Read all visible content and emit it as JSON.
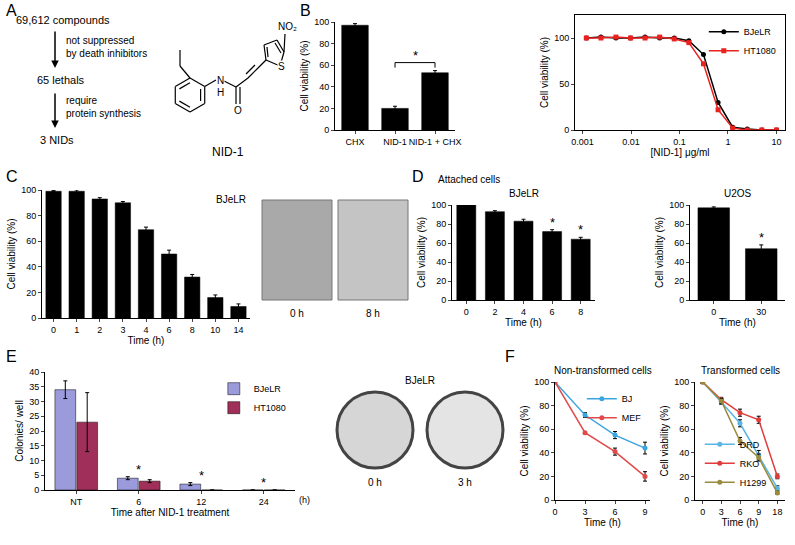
{
  "panel_labels": [
    "A",
    "B",
    "C",
    "D",
    "E",
    "F"
  ],
  "diagram": {
    "steps": [
      "69,612 compounds",
      "65 lethals",
      "3 NIDs"
    ],
    "filters": [
      [
        "not suppressed",
        "by death inhibitors"
      ],
      [
        "require",
        "protein synthesis"
      ]
    ],
    "structure": {
      "name": "NID-1",
      "atoms": [
        "N",
        "H",
        "O",
        "S",
        "NO₂"
      ]
    }
  },
  "images": [
    {
      "labels": [
        "0 h",
        "8 h"
      ]
    },
    {
      "title": "BJeLR",
      "labels": [
        "0 h",
        "3 h"
      ]
    }
  ],
  "chart_data": [
    {
      "type": "bar",
      "categories": [
        "CHX",
        "NID-1",
        "NID-1 + CHX"
      ],
      "values": [
        97,
        20,
        53
      ],
      "errors": [
        1.5,
        2,
        2
      ],
      "color": "#000000",
      "ylabel": "Cell viability (%)",
      "ylim": [
        0,
        100
      ],
      "yticks": [
        0,
        20,
        40,
        60,
        80,
        100
      ],
      "annotations": [
        {
          "text": "*",
          "categories": [
            "NID-1",
            "NID-1 + CHX"
          ]
        }
      ]
    },
    {
      "type": "line",
      "log": "x",
      "x": [
        0.0012,
        0.0024,
        0.0049,
        0.0098,
        0.0195,
        0.039,
        0.078,
        0.156,
        0.3125,
        0.625,
        1.25,
        2.5,
        5,
        10
      ],
      "series": [
        {
          "name": "BJeLR",
          "color": "#000000",
          "marker": "circle",
          "values": [
            100,
            101,
            100,
            100,
            101,
            100,
            100,
            97,
            82,
            30,
            3,
            1,
            0,
            0
          ]
        },
        {
          "name": "HT1080",
          "color": "#e8221f",
          "marker": "square",
          "values": [
            100,
            100,
            101,
            100,
            100,
            101,
            99,
            95,
            72,
            22,
            2,
            0,
            0,
            0
          ]
        }
      ],
      "xlabel": "[NID-1] μg/ml",
      "ylabel": "Cell viability (%)",
      "xlim": [
        0.0007,
        15
      ],
      "xticks": [
        0.001,
        0.01,
        0.1,
        1,
        10
      ],
      "ylim": [
        0,
        125
      ],
      "yticks": [
        0,
        50,
        100
      ],
      "legend": "top right"
    },
    {
      "type": "bar",
      "categories": [
        "0",
        "1",
        "2",
        "3",
        "4",
        "6",
        "8",
        "10",
        "14"
      ],
      "values": [
        99,
        99,
        93,
        90,
        69,
        50,
        32,
        16,
        9
      ],
      "errors": [
        0.5,
        1,
        1,
        1,
        2,
        3,
        2,
        2,
        2
      ],
      "color": "#000000",
      "xlabel": "Time (h)",
      "ylabel": "Cell viability (%)",
      "ylim": [
        0,
        100
      ],
      "yticks": [
        0,
        20,
        40,
        60,
        80,
        100
      ],
      "annotations": [
        {
          "text": "BJeLR"
        }
      ]
    },
    {
      "type": "bar",
      "subtitle": "Attached cells",
      "title": "BJeLR",
      "categories": [
        "0",
        "2",
        "4",
        "6",
        "8"
      ],
      "values": [
        100,
        93,
        83,
        72,
        64
      ],
      "errors": [
        0.5,
        1,
        2,
        2,
        2
      ],
      "color": "#000000",
      "xlabel": "Time (h)",
      "ylabel": "Cell viability (%)",
      "ylim": [
        0,
        100
      ],
      "yticks": [
        0,
        20,
        40,
        60,
        80,
        100
      ],
      "annotations": [
        {
          "text": "*",
          "category": "6"
        },
        {
          "text": "*",
          "category": "8"
        }
      ]
    },
    {
      "type": "bar",
      "title": "U2OS",
      "categories": [
        "0",
        "30"
      ],
      "values": [
        97,
        54
      ],
      "errors": [
        1,
        4
      ],
      "color": "#000000",
      "xlabel": "Time (h)",
      "ylabel": "Cell viability (%)",
      "ylim": [
        0,
        100
      ],
      "yticks": [
        0,
        20,
        40,
        60,
        80,
        100
      ],
      "annotations": [
        {
          "text": "*",
          "category": "30"
        }
      ]
    },
    {
      "type": "bar",
      "categories": [
        "NT",
        "6",
        "12",
        "24"
      ],
      "series": [
        {
          "name": "BJeLR",
          "color": "#9b9bdc",
          "values": [
            34,
            4,
            2,
            0
          ],
          "errors": [
            3,
            0.5,
            0.5,
            0
          ]
        },
        {
          "name": "HT1080",
          "color": "#a0305a",
          "values": [
            23,
            3,
            0,
            0
          ],
          "errors": [
            10,
            0.5,
            0,
            0
          ]
        }
      ],
      "xlabel": "Time after NID-1 treatment",
      "ylabel": "Colonies/ well",
      "ylim": [
        0,
        40
      ],
      "yticks": [
        0,
        5,
        10,
        15,
        20,
        25,
        30,
        35,
        40
      ],
      "legend": "top right",
      "annotations": [
        {
          "text": "*",
          "category": "6"
        },
        {
          "text": "*",
          "category": "12"
        },
        {
          "text": "*",
          "category": "24"
        },
        {
          "text": "(h)",
          "axis": "x"
        }
      ]
    },
    {
      "type": "line",
      "title": "Non-transformed cells",
      "x": [
        0,
        3,
        6,
        9
      ],
      "series": [
        {
          "name": "BJ",
          "color": "#3aa6e0",
          "values": [
            100,
            72,
            55,
            44
          ],
          "errors": [
            1,
            2,
            3,
            5
          ]
        },
        {
          "name": "MEF",
          "color": "#e04a4a",
          "values": [
            100,
            57,
            41,
            20
          ],
          "errors": [
            1,
            1,
            3,
            4
          ]
        }
      ],
      "xlabel": "Time (h)",
      "ylabel": "Cell viability (%)",
      "xlim": [
        0,
        9.5
      ],
      "xticks": [
        0,
        3,
        6,
        9
      ],
      "ylim": [
        0,
        100
      ],
      "yticks": [
        0,
        20,
        40,
        60,
        80,
        100
      ],
      "legend": "top right"
    },
    {
      "type": "line",
      "title": "Transformed cells",
      "categories": [
        "0",
        "3",
        "6",
        "9",
        "18"
      ],
      "series": [
        {
          "name": "DRD",
          "color": "#5ab4e6",
          "values": [
            100,
            83,
            65,
            38,
            10
          ],
          "errors": [
            1,
            2,
            3,
            4,
            2
          ]
        },
        {
          "name": "RKO",
          "color": "#e03c3c",
          "values": [
            100,
            85,
            74,
            68,
            20
          ],
          "errors": [
            1,
            2,
            3,
            3,
            2
          ]
        },
        {
          "name": "H1299",
          "color": "#9a8a3c",
          "values": [
            100,
            84,
            50,
            36,
            6
          ],
          "errors": [
            1,
            2,
            3,
            3,
            1
          ]
        }
      ],
      "xlabel": "Time (h)",
      "ylabel": "Cell viability (%)",
      "ylim": [
        0,
        100
      ],
      "yticks": [
        0,
        20,
        40,
        60,
        80,
        100
      ],
      "legend": "bottom left"
    }
  ]
}
